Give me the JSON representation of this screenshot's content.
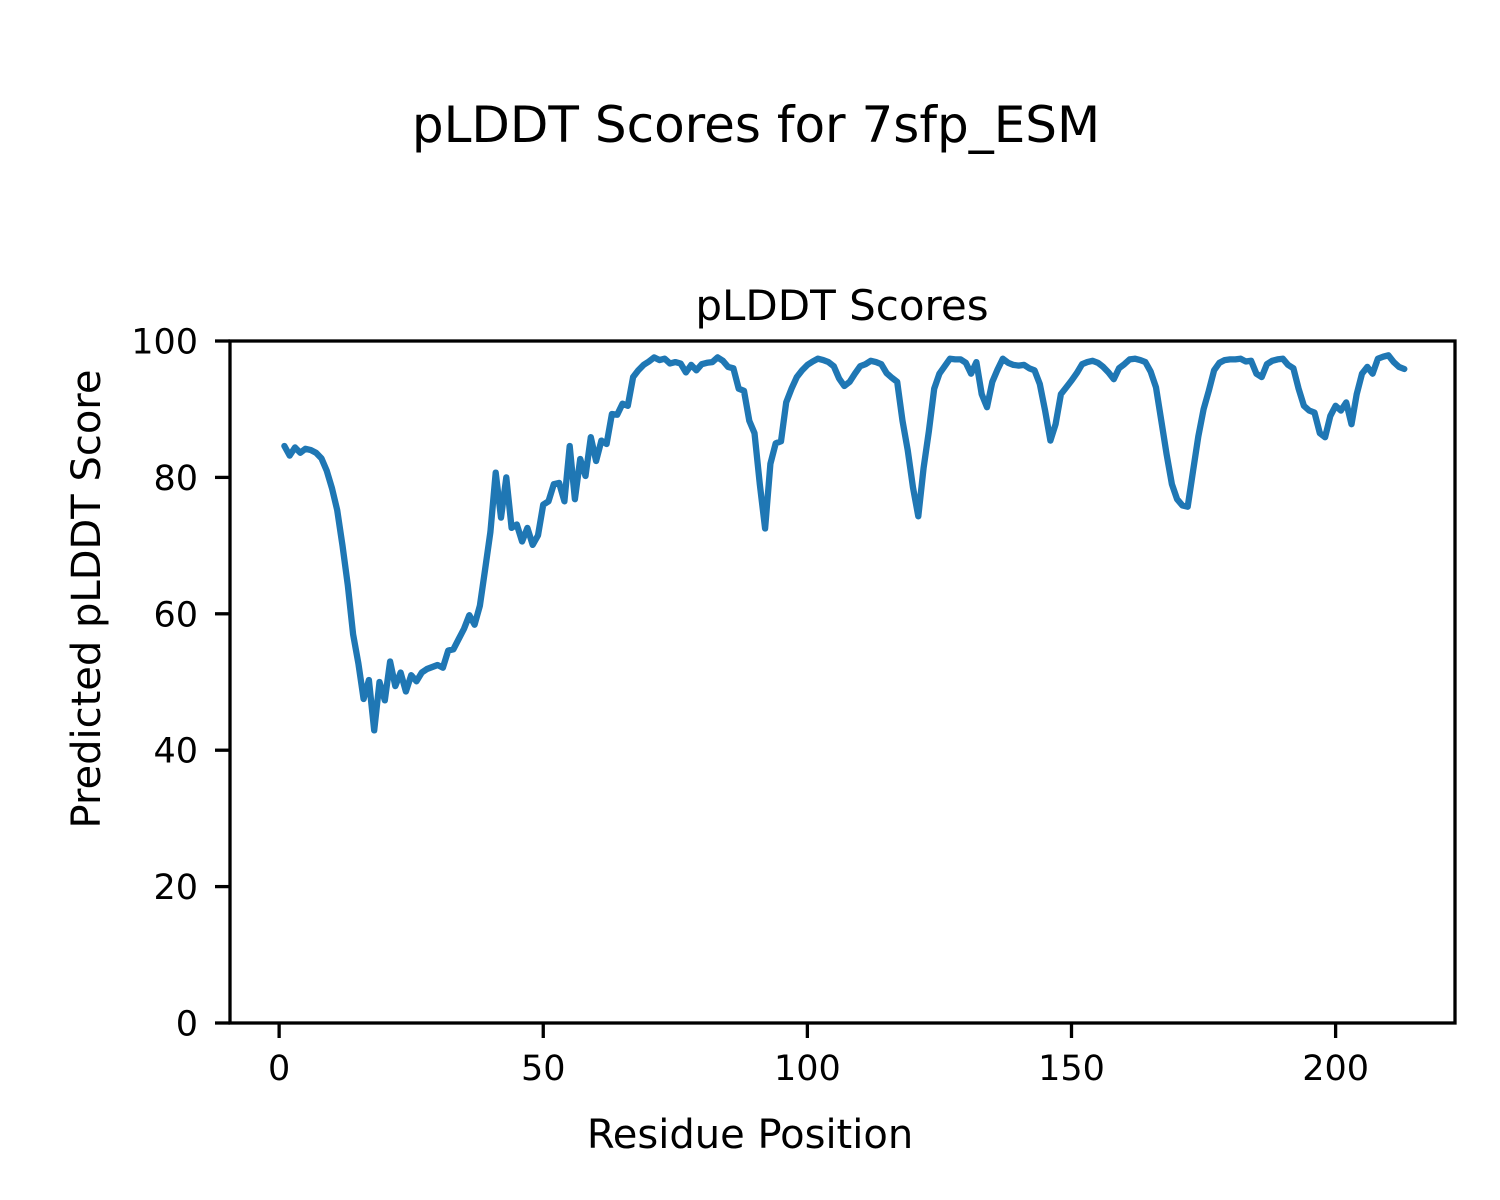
{
  "figure": {
    "suptitle": "pLDDT Scores for 7sfp_ESM"
  },
  "chart_data": {
    "type": "line",
    "title": "pLDDT Scores",
    "xlabel": "Residue Position",
    "ylabel": "Predicted pLDDT Score",
    "grid": false,
    "legend": "none",
    "line_color": "#1f77b4",
    "xlim": [
      -9.3,
      222.6
    ],
    "ylim": [
      0,
      100
    ],
    "xticks": [
      0,
      50,
      100,
      150,
      200
    ],
    "yticks": [
      0,
      20,
      40,
      60,
      80,
      100
    ],
    "x": [
      1,
      2,
      3,
      4,
      5,
      6,
      7,
      8,
      9,
      10,
      11,
      12,
      13,
      14,
      15,
      16,
      17,
      18,
      19,
      20,
      21,
      22,
      23,
      24,
      25,
      26,
      27,
      28,
      29,
      30,
      31,
      32,
      33,
      34,
      35,
      36,
      37,
      38,
      39,
      40,
      41,
      42,
      43,
      44,
      45,
      46,
      47,
      48,
      49,
      50,
      51,
      52,
      53,
      54,
      55,
      56,
      57,
      58,
      59,
      60,
      61,
      62,
      63,
      64,
      65,
      66,
      67,
      68,
      69,
      70,
      71,
      72,
      73,
      74,
      75,
      76,
      77,
      78,
      79,
      80,
      81,
      82,
      83,
      84,
      85,
      86,
      87,
      88,
      89,
      90,
      91,
      92,
      93,
      94,
      95,
      96,
      97,
      98,
      99,
      100,
      101,
      102,
      103,
      104,
      105,
      106,
      107,
      108,
      109,
      110,
      111,
      112,
      113,
      114,
      115,
      116,
      117,
      118,
      119,
      120,
      121,
      122,
      123,
      124,
      125,
      126,
      127,
      128,
      129,
      130,
      131,
      132,
      133,
      134,
      135,
      136,
      137,
      138,
      139,
      140,
      141,
      142,
      143,
      144,
      145,
      146,
      147,
      148,
      149,
      150,
      151,
      152,
      153,
      154,
      155,
      156,
      157,
      158,
      159,
      160,
      161,
      162,
      163,
      164,
      165,
      166,
      167,
      168,
      169,
      170,
      171,
      172,
      173,
      174,
      175,
      176,
      177,
      178,
      179,
      180,
      181,
      182,
      183,
      184,
      185,
      186,
      187,
      188,
      189,
      190,
      191,
      192,
      193,
      194,
      195,
      196,
      197,
      198,
      199,
      200,
      201,
      202,
      203,
      204,
      205,
      206,
      207,
      208,
      209,
      210,
      211,
      212,
      213
    ],
    "y": [
      84.6,
      83.2,
      84.4,
      83.6,
      84.2,
      84.0,
      83.6,
      82.8,
      81.0,
      78.4,
      75.2,
      70.0,
      64.2,
      57.0,
      52.7,
      47.5,
      50.3,
      42.9,
      50.0,
      47.3,
      53.0,
      49.4,
      51.4,
      48.6,
      51.0,
      50.1,
      51.4,
      51.9,
      52.2,
      52.5,
      52.1,
      54.6,
      54.8,
      56.3,
      57.8,
      59.8,
      58.4,
      61.2,
      66.5,
      72.0,
      80.7,
      74.1,
      80.0,
      72.6,
      73.1,
      70.6,
      72.6,
      70.1,
      71.5,
      76.0,
      76.5,
      79.0,
      79.2,
      76.5,
      84.6,
      76.8,
      82.7,
      80.2,
      85.9,
      82.4,
      85.4,
      84.9,
      89.3,
      89.2,
      90.8,
      90.5,
      94.7,
      95.7,
      96.5,
      97.0,
      97.6,
      97.2,
      97.4,
      96.7,
      96.9,
      96.7,
      95.4,
      96.5,
      95.7,
      96.6,
      96.8,
      96.9,
      97.6,
      97.1,
      96.2,
      96.0,
      93.0,
      92.7,
      88.3,
      86.5,
      79.0,
      72.5,
      82.0,
      85.0,
      85.3,
      91.0,
      93.0,
      94.7,
      95.7,
      96.5,
      97.0,
      97.4,
      97.2,
      96.9,
      96.3,
      94.5,
      93.4,
      94.0,
      95.2,
      96.3,
      96.6,
      97.1,
      96.9,
      96.6,
      95.3,
      94.6,
      94.0,
      88.3,
      84.0,
      78.5,
      74.3,
      81.4,
      86.8,
      93.0,
      95.2,
      96.3,
      97.4,
      97.3,
      97.3,
      96.8,
      95.2,
      96.9,
      92.2,
      90.3,
      94.0,
      95.8,
      97.4,
      96.8,
      96.5,
      96.4,
      96.5,
      96.0,
      95.7,
      93.7,
      89.8,
      85.4,
      87.8,
      92.2,
      93.2,
      94.2,
      95.3,
      96.6,
      96.9,
      97.1,
      96.8,
      96.2,
      95.4,
      94.4,
      96.0,
      96.6,
      97.3,
      97.4,
      97.2,
      96.9,
      95.5,
      93.2,
      88.3,
      83.4,
      79.0,
      76.8,
      75.9,
      75.7,
      80.9,
      86.0,
      90.0,
      92.7,
      95.7,
      96.8,
      97.2,
      97.3,
      97.3,
      97.4,
      97.0,
      97.1,
      95.2,
      94.7,
      96.6,
      97.1,
      97.3,
      97.4,
      96.5,
      96.0,
      93.0,
      90.5,
      89.8,
      89.5,
      86.5,
      85.9,
      89.0,
      90.5,
      89.8,
      91.0,
      87.8,
      92.2,
      95.2,
      96.2,
      95.2,
      97.4,
      97.7,
      97.9,
      96.9,
      96.2,
      95.9
    ]
  }
}
